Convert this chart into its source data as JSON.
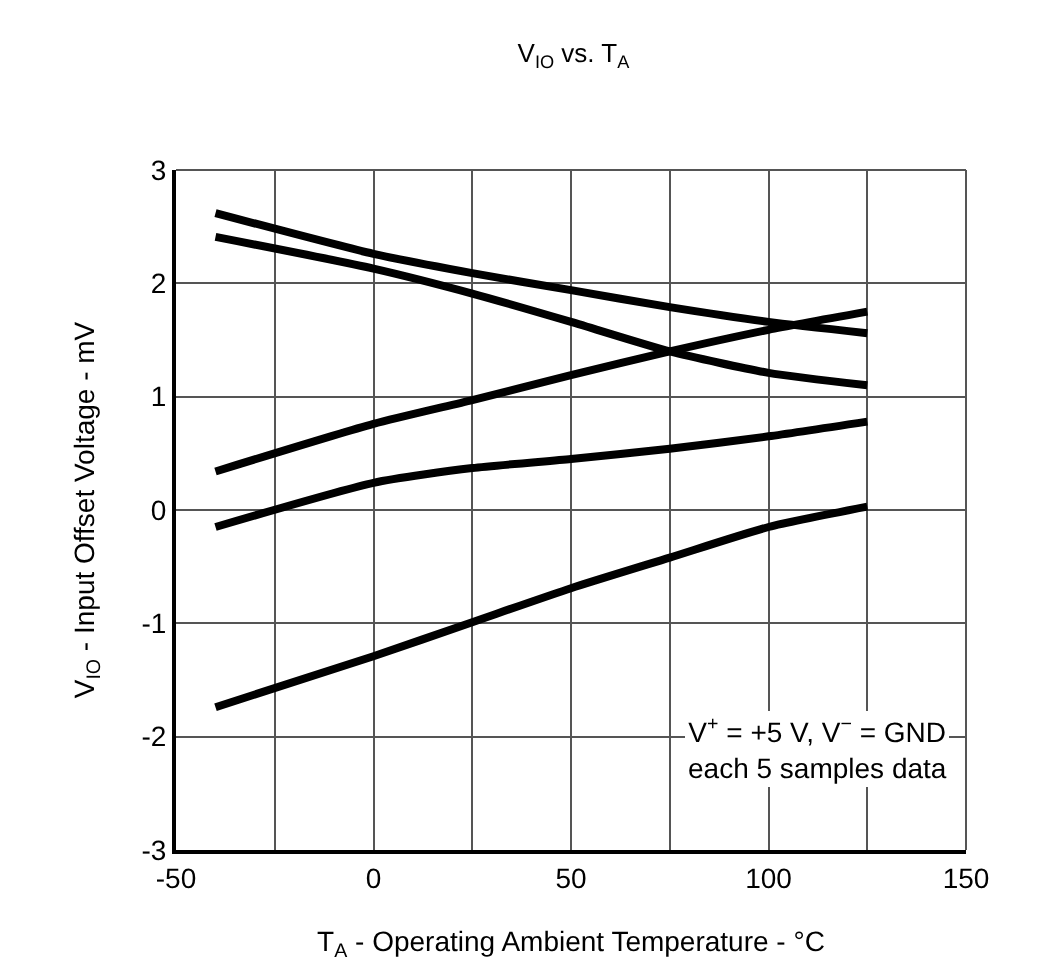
{
  "chart_data": {
    "type": "line",
    "title": "V$_{IO}$ vs. T$_{A}$",
    "xlabel": "T$_{A}$ - Operating Ambient Temperature - °C",
    "ylabel": "V$_{IO}$ - Input Offset Voltage - mV",
    "x": [
      -40,
      0,
      25,
      50,
      75,
      100,
      125
    ],
    "series": [
      {
        "color": "#000000",
        "values": [
          2.62,
          2.26,
          2.09,
          1.94,
          1.79,
          1.66,
          1.56
        ]
      },
      {
        "color": "#000000",
        "values": [
          2.41,
          2.13,
          1.91,
          1.66,
          1.4,
          1.21,
          1.1
        ]
      },
      {
        "color": "#000000",
        "values": [
          0.34,
          0.76,
          0.97,
          1.19,
          1.4,
          1.59,
          1.75
        ]
      },
      {
        "color": "#000000",
        "values": [
          -0.15,
          0.24,
          0.37,
          0.45,
          0.54,
          0.65,
          0.78
        ]
      },
      {
        "color": "#000000",
        "values": [
          -1.74,
          -1.29,
          -0.99,
          -0.69,
          -0.42,
          -0.15,
          0.03
        ]
      }
    ],
    "xlim": [
      -50,
      150
    ],
    "xticks": [
      -50,
      {
        "value": -25,
        "label": null
      },
      0,
      {
        "value": 25,
        "label": null
      },
      50,
      {
        "value": 75,
        "label": null
      },
      100,
      {
        "value": 125,
        "label": null
      },
      150
    ],
    "ylim": [
      -3,
      3
    ],
    "yticks": [
      -3,
      -2,
      -1,
      0,
      1,
      2,
      3
    ],
    "grid": true,
    "marker": "none",
    "line_style": "solid",
    "annotations": [
      "V$^{+}$ = +5 V, V$^{−}$ = GND\neach 5 samples data"
    ]
  }
}
